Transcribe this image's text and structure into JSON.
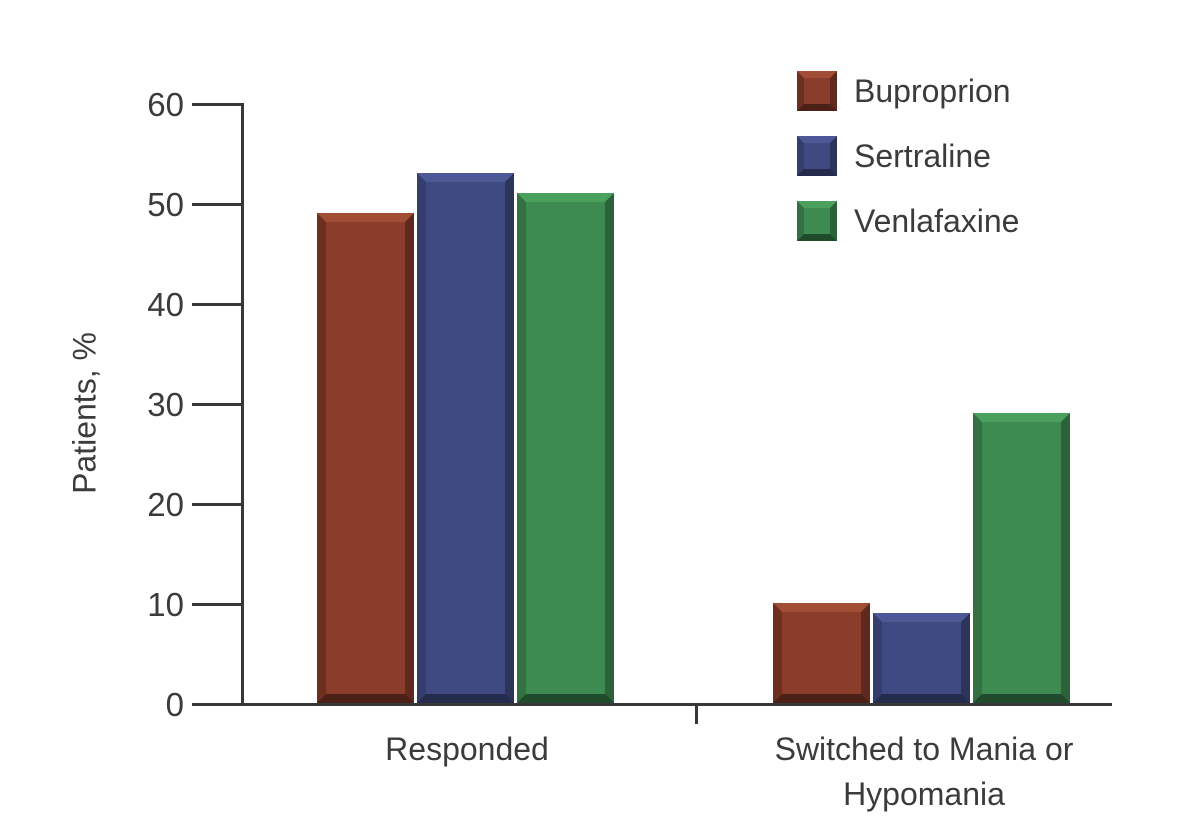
{
  "figure": {
    "background": "#FFFFFF",
    "text_color": "#3B3B3B",
    "axis_color": "#383838"
  },
  "chart_data": {
    "type": "bar",
    "title": "",
    "xlabel": "",
    "ylabel": "Patients, %",
    "categories": [
      "Responded",
      "Switched to Mania or Hypomania"
    ],
    "series": [
      {
        "name": "Buproprion",
        "values": [
          49,
          10
        ],
        "color": "#8A3D2A",
        "bevel": {
          "light": "#A24E37",
          "left": "#6D3020",
          "right": "#5F2A1D",
          "bottom": "#4A2017"
        }
      },
      {
        "name": "Sertraline",
        "values": [
          53,
          9
        ],
        "color": "#3F4A82",
        "bevel": {
          "light": "#4D5997",
          "left": "#343D6C",
          "right": "#2C3459",
          "bottom": "#252B4C"
        }
      },
      {
        "name": "Venlafaxine",
        "values": [
          51,
          29
        ],
        "color": "#3E8B51",
        "bevel": {
          "light": "#4BA05E",
          "left": "#337042",
          "right": "#2C6139",
          "bottom": "#1F4A2C"
        }
      }
    ],
    "ylim": [
      0,
      60
    ],
    "yticks": [
      0,
      10,
      20,
      30,
      40,
      50,
      60
    ],
    "grid": false,
    "legend_position": "top-right",
    "bar_style": "3d-bevel"
  }
}
